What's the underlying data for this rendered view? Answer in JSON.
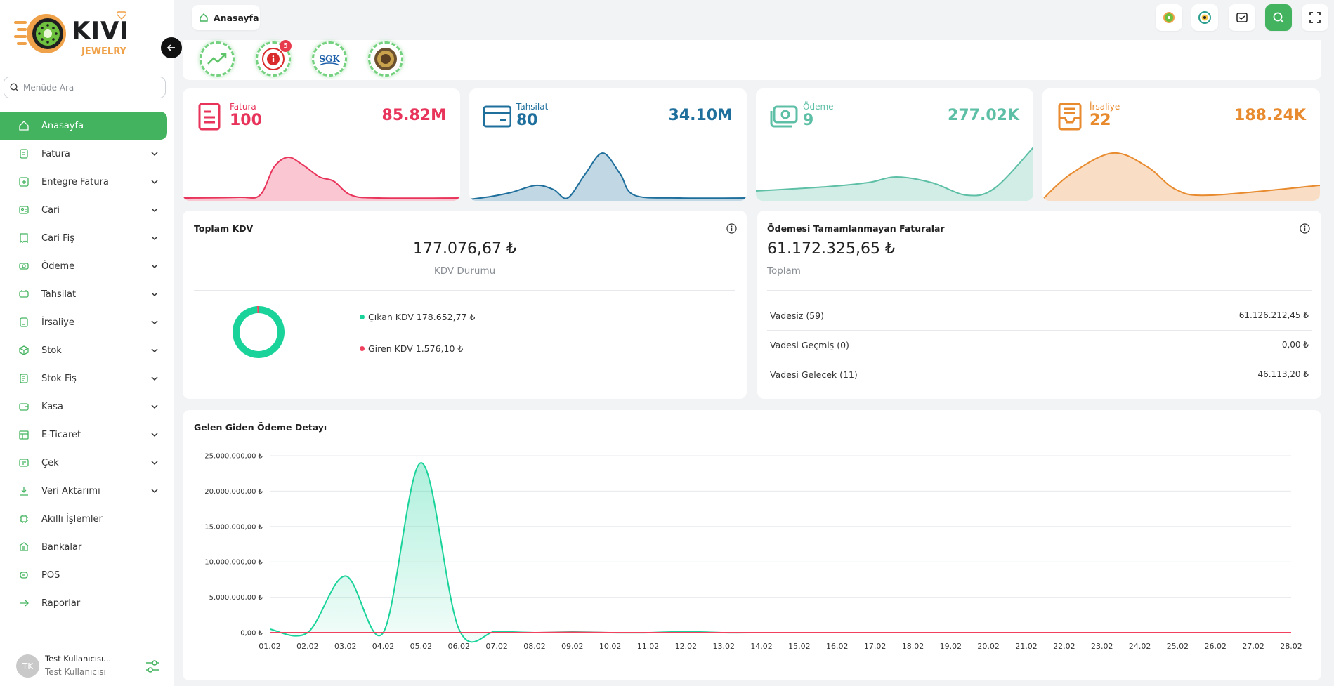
{
  "brand": {
    "name": "KIVI",
    "sub": "JEWELRY"
  },
  "menu_search": {
    "placeholder": "Menüde Ara"
  },
  "sidebar": {
    "items": [
      {
        "label": "Anasayfa",
        "icon": "home-icon",
        "active": true,
        "chevron": false
      },
      {
        "label": "Fatura",
        "icon": "invoice-icon",
        "chevron": true
      },
      {
        "label": "Entegre Fatura",
        "icon": "e-invoice-icon",
        "chevron": true
      },
      {
        "label": "Cari",
        "icon": "contact-card-icon",
        "chevron": true
      },
      {
        "label": "Cari Fiş",
        "icon": "receipt-icon",
        "chevron": true
      },
      {
        "label": "Ödeme",
        "icon": "money-icon",
        "chevron": true
      },
      {
        "label": "Tahsilat",
        "icon": "collection-icon",
        "chevron": true
      },
      {
        "label": "İrsaliye",
        "icon": "waybill-icon",
        "chevron": true
      },
      {
        "label": "Stok",
        "icon": "box-icon",
        "chevron": true
      },
      {
        "label": "Stok Fiş",
        "icon": "stock-slip-icon",
        "chevron": true
      },
      {
        "label": "Kasa",
        "icon": "wallet-icon",
        "chevron": true
      },
      {
        "label": "E-Ticaret",
        "icon": "store-icon",
        "chevron": true
      },
      {
        "label": "Çek",
        "icon": "check-icon",
        "chevron": true
      },
      {
        "label": "Veri Aktarımı",
        "icon": "download-icon",
        "chevron": true
      },
      {
        "label": "Akıllı İşlemler",
        "icon": "chip-icon",
        "chevron": false
      },
      {
        "label": "Bankalar",
        "icon": "bank-icon",
        "chevron": false
      },
      {
        "label": "POS",
        "icon": "pos-icon",
        "chevron": false
      },
      {
        "label": "Raporlar",
        "icon": "arrow-right-icon",
        "chevron": false
      }
    ]
  },
  "user": {
    "initials": "TK",
    "name": "Test Kullanıcısı...",
    "role": "Test Kullanıcısı"
  },
  "topbar": {
    "home_tab": "Anasayfa"
  },
  "shortcuts": [
    {
      "icon": "trend-chart-icon"
    },
    {
      "icon": "gib-logo-icon",
      "badge": "5"
    },
    {
      "icon": "sgk-logo-icon",
      "text": "SGK"
    },
    {
      "icon": "emblem-icon"
    }
  ],
  "stats": [
    {
      "label": "Fatura",
      "count": "100",
      "amount": "85.82M",
      "color": "#e8335a"
    },
    {
      "label": "Tahsilat",
      "count": "80",
      "amount": "34.10M",
      "color": "#1f6f9c"
    },
    {
      "label": "Ödeme",
      "count": "9",
      "amount": "277.02K",
      "color": "#5dbfa6"
    },
    {
      "label": "İrsaliye",
      "count": "22",
      "amount": "188.24K",
      "color": "#e88a2e"
    }
  ],
  "kdv": {
    "title": "Toplam KDV",
    "total": "177.076,67 ₺",
    "subtitle": "KDV Durumu",
    "items": [
      {
        "label": "Çıkan KDV 178.652,77 ₺",
        "color": "#1ad39a",
        "value": 178652.77
      },
      {
        "label": "Giren KDV 1.576,10 ₺",
        "color": "#f0415e",
        "value": 1576.1
      }
    ]
  },
  "unpaid": {
    "title": "Ödemesi Tamamlanmayan Faturalar",
    "total": "61.172.325,65 ₺",
    "subtitle": "Toplam",
    "rows": [
      {
        "label": "Vadesiz (59)",
        "value": "61.126.212,45 ₺"
      },
      {
        "label": "Vadesi Geçmiş (0)",
        "value": "0,00 ₺"
      },
      {
        "label": "Vadesi Gelecek (11)",
        "value": "46.113,20 ₺"
      }
    ]
  },
  "chart_data": {
    "type": "area",
    "title": "Gelen Giden Ödeme Detayı",
    "x": [
      "01.02",
      "02.02",
      "03.02",
      "04.02",
      "05.02",
      "06.02",
      "07.02",
      "08.02",
      "09.02",
      "10.02",
      "11.02",
      "12.02",
      "13.02",
      "14.02",
      "15.02",
      "16.02",
      "17.02",
      "18.02",
      "19.02",
      "20.02",
      "21.02",
      "22.02",
      "23.02",
      "24.02",
      "25.02",
      "26.02",
      "27.02",
      "28.02"
    ],
    "yticks": [
      "0,00 ₺",
      "5.000.000,00 ₺",
      "10.000.000,00 ₺",
      "15.000.000,00 ₺",
      "20.000.000,00 ₺",
      "25.000.000,00 ₺"
    ],
    "ylim": [
      0,
      25000000
    ],
    "series": [
      {
        "color": "#1ad39a",
        "values": [
          500000,
          0,
          8000000,
          0,
          24000000,
          500000,
          200000,
          0,
          100000,
          0,
          0,
          150000,
          0,
          0,
          0,
          0,
          0,
          0,
          0,
          0,
          0,
          0,
          0,
          0,
          0,
          0,
          0,
          0
        ]
      },
      {
        "color": "#f0415e",
        "values": [
          0,
          0,
          0,
          0,
          0,
          0,
          0,
          0,
          50000,
          0,
          0,
          0,
          0,
          0,
          0,
          0,
          0,
          0,
          0,
          0,
          0,
          0,
          0,
          0,
          0,
          0,
          0,
          0
        ]
      }
    ]
  }
}
